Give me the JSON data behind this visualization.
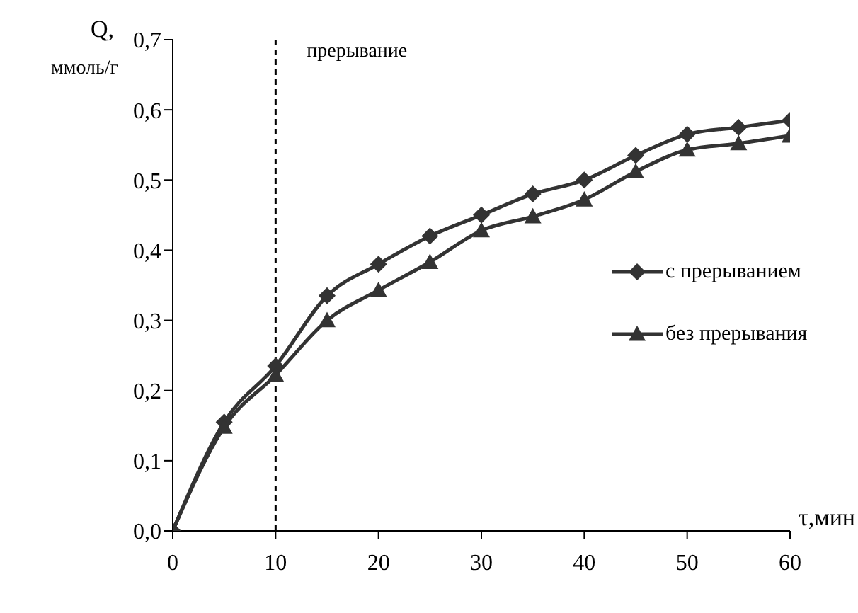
{
  "chart_data": {
    "type": "line",
    "xlabel": "τ,мин",
    "ylabel": "Q, ммоль/г",
    "x": [
      0,
      5,
      10,
      15,
      20,
      25,
      30,
      35,
      40,
      45,
      50,
      55,
      60
    ],
    "series": [
      {
        "name": "с прерыванием",
        "color": "#333333",
        "marker": "diamond",
        "values": [
          0,
          0.155,
          0.235,
          0.335,
          0.38,
          0.42,
          0.45,
          0.48,
          0.5,
          0.535,
          0.565,
          0.575,
          0.585
        ]
      },
      {
        "name": "без прерывания",
        "color": "#333333",
        "marker": "triangle",
        "values": [
          0,
          0.148,
          0.222,
          0.3,
          0.343,
          0.383,
          0.428,
          0.448,
          0.472,
          0.512,
          0.543,
          0.552,
          0.563
        ]
      }
    ],
    "xlim": [
      0,
      60
    ],
    "xticks": [
      0,
      10,
      20,
      30,
      40,
      50,
      60
    ],
    "ylim": [
      0,
      0.7
    ],
    "yticks": [
      {
        "value": 0,
        "label": "0,0"
      },
      {
        "value": 0.1,
        "label": "0,1"
      },
      {
        "value": 0.2,
        "label": "0,2"
      },
      {
        "value": 0.3,
        "label": "0,3"
      },
      {
        "value": 0.4,
        "label": "0,4"
      },
      {
        "value": 0.5,
        "label": "0,5"
      },
      {
        "value": 0.6,
        "label": "0,6"
      },
      {
        "value": 0.7,
        "label": "0,7"
      }
    ],
    "ref_lines": [
      {
        "axis": "x",
        "value": 10,
        "label": "прерывание",
        "color": "#000000",
        "line_style": "dashed"
      }
    ],
    "grid": false,
    "legend": "right",
    "line_style": "solid"
  }
}
